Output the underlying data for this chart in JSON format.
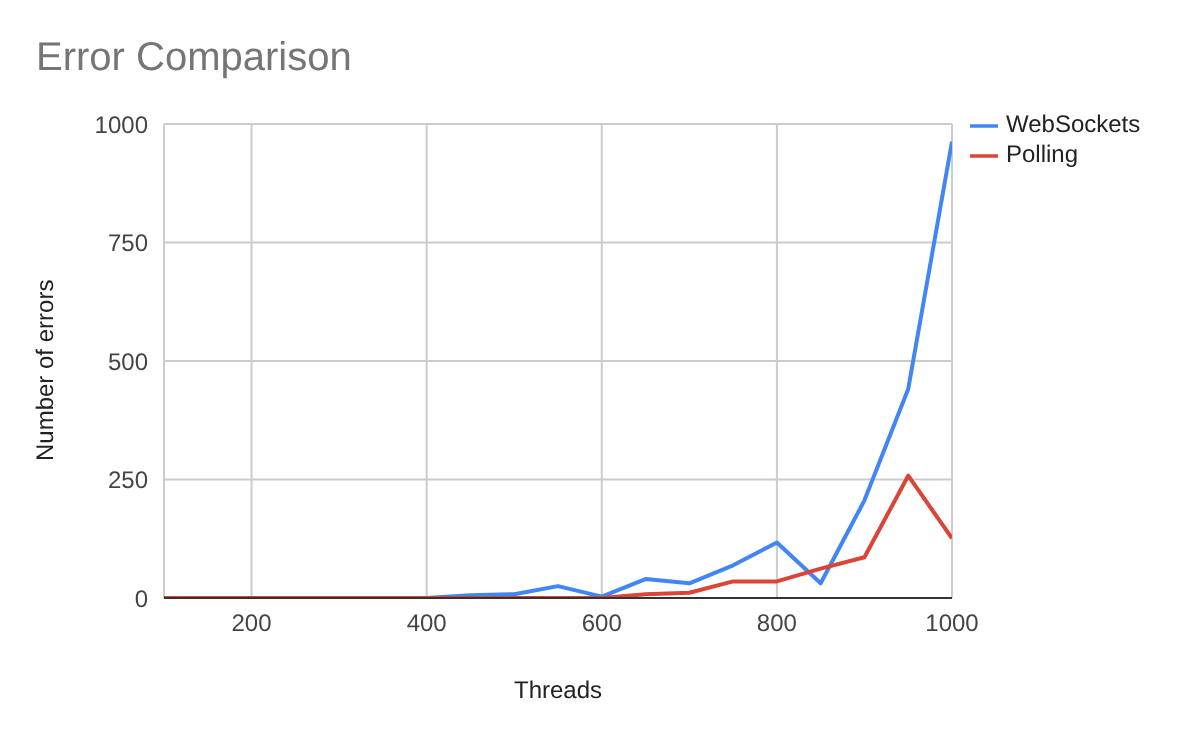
{
  "chart_data": {
    "type": "line",
    "title": "Error Comparison",
    "xlabel": "Threads",
    "ylabel": "Number of errors",
    "x": [
      100,
      150,
      200,
      250,
      300,
      350,
      400,
      450,
      500,
      550,
      600,
      650,
      700,
      750,
      800,
      850,
      900,
      950,
      1000
    ],
    "series": [
      {
        "name": "WebSockets",
        "color": "#4285f4",
        "values": [
          null,
          null,
          null,
          null,
          null,
          null,
          0,
          6,
          8,
          25,
          3,
          40,
          31,
          69,
          117,
          31,
          206,
          441,
          963
        ]
      },
      {
        "name": "Polling",
        "color": "#db4437",
        "values": [
          0,
          0,
          0,
          0,
          0,
          0,
          0,
          0,
          0,
          0,
          0,
          8,
          11,
          35,
          35,
          62,
          86,
          258,
          126
        ]
      }
    ],
    "xlim": [
      100,
      1000
    ],
    "xticks": [
      200,
      400,
      600,
      800,
      1000
    ],
    "ylim": [
      0,
      1000
    ],
    "yticks": [
      0,
      250,
      500,
      750,
      1000
    ],
    "grid": true,
    "legend": "right",
    "marker": "none",
    "line_style": "solid"
  }
}
